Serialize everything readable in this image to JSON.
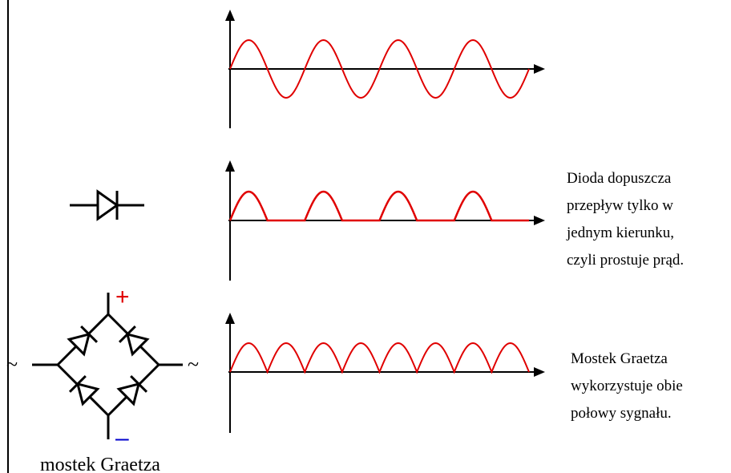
{
  "diode": {
    "caption_lines": [
      "Dioda dopuszcza",
      "przepływ tylko w",
      "jednym kierunku,",
      "czyli prostuje prąd."
    ]
  },
  "bridge": {
    "label": "mostek Graetza",
    "plus_sign": "+",
    "minus_sign": "–",
    "ac_symbol": "~",
    "caption_lines": [
      "Mostek Graetza",
      "wykorzystuje obie",
      "połowy sygnału."
    ]
  },
  "colors": {
    "signal": "#e00000",
    "axes": "#000000",
    "plus": "#e00000",
    "minus": "#0000cc",
    "ac": "#a020c0"
  },
  "waves": {
    "ac": {
      "kind": "sine",
      "periods": 4
    },
    "half_wave": {
      "kind": "half-wave-rectified",
      "periods": 4
    },
    "full_wave": {
      "kind": "full-wave-rectified",
      "half_cycles": 8
    }
  }
}
